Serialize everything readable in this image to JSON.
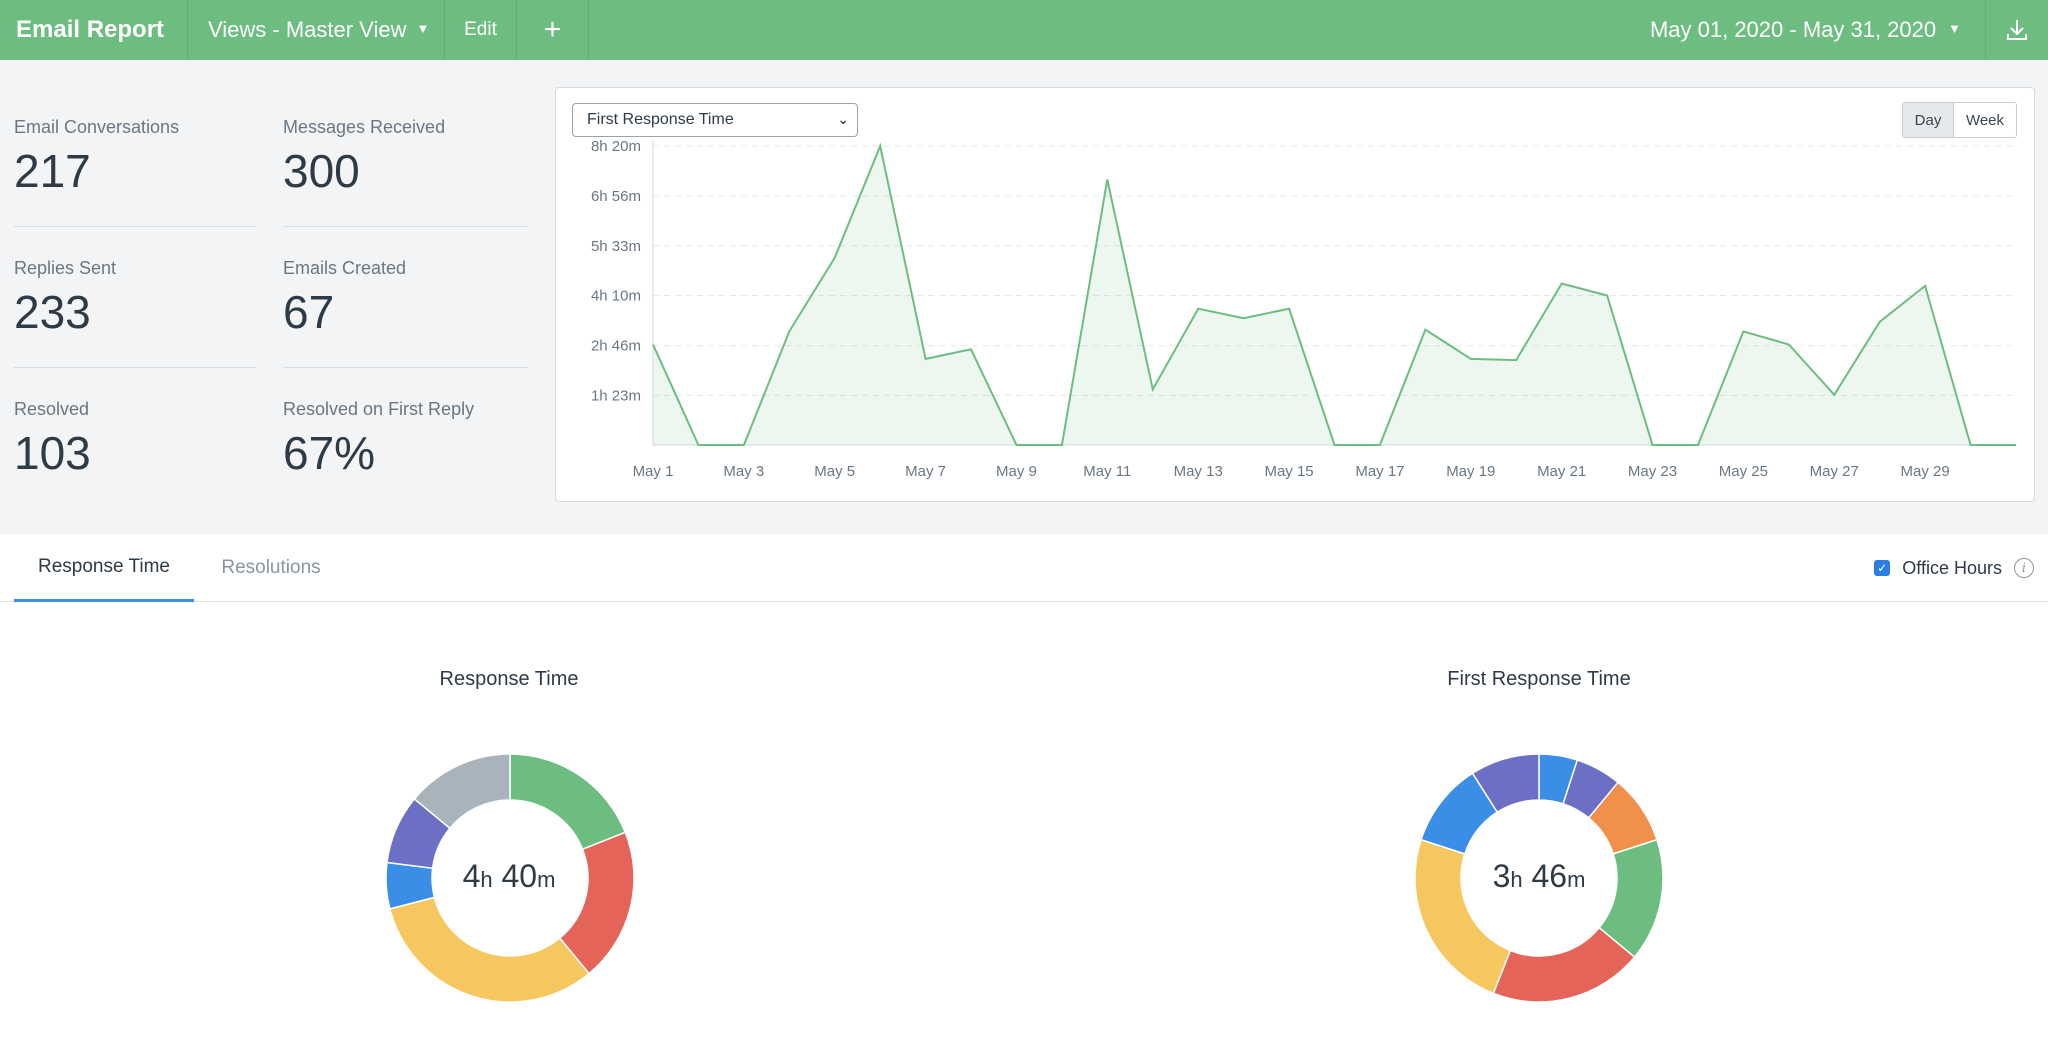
{
  "header": {
    "title": "Email Report",
    "views_label": "Views - Master View",
    "edit_label": "Edit",
    "add_label": "+",
    "date_range": "May 01, 2020 - May 31, 2020",
    "accent_color": "#6dbd80"
  },
  "stats": {
    "email_conversations": {
      "label": "Email Conversations",
      "value": "217"
    },
    "messages_received": {
      "label": "Messages Received",
      "value": "300"
    },
    "replies_sent": {
      "label": "Replies Sent",
      "value": "233"
    },
    "emails_created": {
      "label": "Emails Created",
      "value": "67"
    },
    "resolved": {
      "label": "Resolved",
      "value": "103"
    },
    "resolved_first_reply": {
      "label": "Resolved on First Reply",
      "value": "67%"
    }
  },
  "chart_controls": {
    "metric_selected": "First Response Time",
    "day_label": "Day",
    "week_label": "Week",
    "granularity_selected": "Day"
  },
  "tabs": {
    "response_time": "Response Time",
    "resolutions": "Resolutions",
    "active": "Response Time",
    "office_hours_label": "Office Hours",
    "office_hours_checked": true
  },
  "donuts": {
    "response_time": {
      "title": "Response Time",
      "value_h": "4",
      "unit_h": "h",
      "value_m": "40",
      "unit_m": "m"
    },
    "first_response_time": {
      "title": "First Response Time",
      "value_h": "3",
      "unit_h": "h",
      "value_m": "46",
      "unit_m": "m"
    }
  },
  "chart_data": [
    {
      "type": "area",
      "series_color": "#6dbd80",
      "grid": true,
      "y_unit": "minutes",
      "ylim": [
        0,
        500
      ],
      "yticks": [
        83,
        166,
        250,
        333,
        416,
        500
      ],
      "ytick_labels": [
        "1h 23m",
        "2h 46m",
        "4h 10m",
        "5h 33m",
        "6h 56m",
        "8h 20m"
      ],
      "xtick_labels": [
        "May 1",
        "May 3",
        "May 5",
        "May 7",
        "May 9",
        "May 11",
        "May 13",
        "May 15",
        "May 17",
        "May 19",
        "May 21",
        "May 23",
        "May 25",
        "May 27",
        "May 29"
      ],
      "x": [
        "May 1",
        "May 2",
        "May 3",
        "May 4",
        "May 5",
        "May 6",
        "May 7",
        "May 8",
        "May 9",
        "May 10",
        "May 11",
        "May 12",
        "May 13",
        "May 14",
        "May 15",
        "May 16",
        "May 17",
        "May 18",
        "May 19",
        "May 20",
        "May 21",
        "May 22",
        "May 23",
        "May 24",
        "May 25",
        "May 26",
        "May 27",
        "May 28",
        "May 29",
        "May 30",
        "May 31"
      ],
      "values": [
        168,
        0,
        0,
        190,
        313,
        500,
        144,
        160,
        0,
        0,
        444,
        93,
        228,
        212,
        228,
        0,
        0,
        193,
        144,
        142,
        270,
        250,
        0,
        0,
        190,
        168,
        84,
        206,
        266,
        0,
        0
      ]
    },
    {
      "type": "pie",
      "title": "Response Time",
      "colors": [
        "#6dbd80",
        "#e4645a",
        "#f7c75f",
        "#3b8ee6",
        "#6c70c5",
        "#a9b3bc"
      ],
      "values": [
        19,
        20,
        32,
        6,
        9,
        14
      ]
    },
    {
      "type": "pie",
      "title": "First Response Time",
      "colors": [
        "#3b8ee6",
        "#6c70c5",
        "#f0904a",
        "#6dbd80",
        "#e4645a",
        "#f7c75f",
        "#3b8ee6",
        "#6c70c5"
      ],
      "values": [
        5,
        6,
        9,
        16,
        20,
        24,
        11,
        9
      ]
    }
  ]
}
